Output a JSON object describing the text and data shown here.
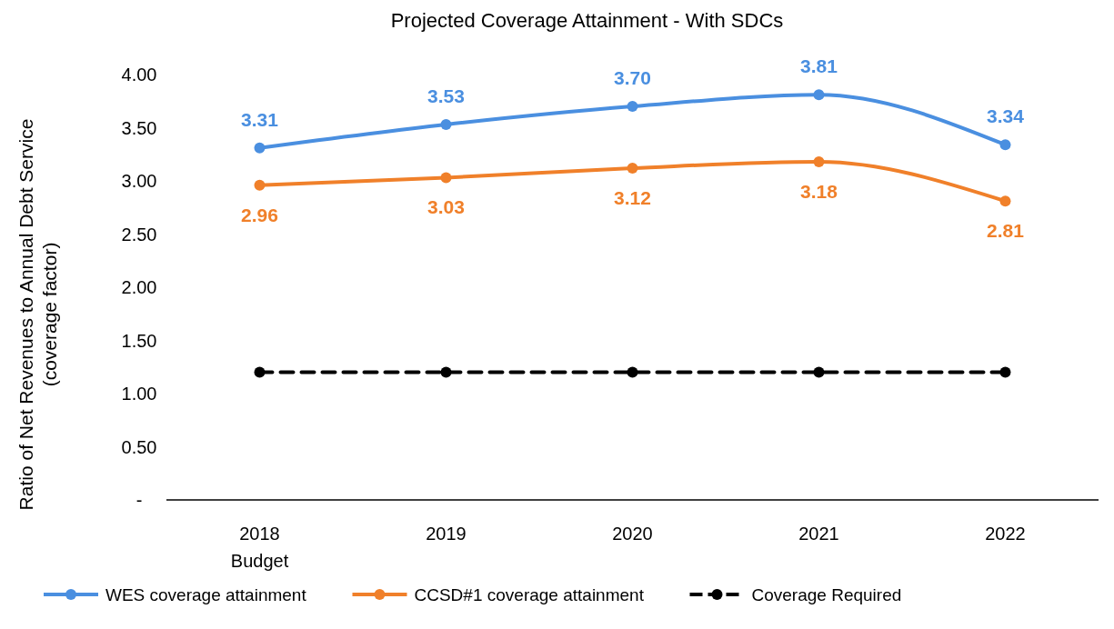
{
  "chart_data": {
    "type": "line",
    "title": "Projected Coverage Attainment - With SDCs",
    "ylabel": "Ratio of Net Revenues to Annual Debt Service\n(coverage factor)",
    "categories": [
      "2018\nBudget",
      "2019",
      "2020",
      "2021",
      "2022"
    ],
    "series": [
      {
        "name": "WES coverage attainment",
        "color": "#4a8fe0",
        "values": [
          3.31,
          3.53,
          3.7,
          3.81,
          3.34
        ],
        "value_labels": [
          "3.31",
          "3.53",
          "3.70",
          "3.81",
          "3.34"
        ]
      },
      {
        "name": "CCSD#1 coverage attainment",
        "color": "#f0802a",
        "values": [
          2.96,
          3.03,
          3.12,
          3.18,
          2.81
        ],
        "value_labels": [
          "2.96",
          "3.03",
          "3.12",
          "3.18",
          "2.81"
        ]
      },
      {
        "name": "Coverage Required",
        "color": "#000000",
        "values": [
          1.2,
          1.2,
          1.2,
          1.2,
          1.2
        ],
        "line_style": "dashed"
      }
    ],
    "ylim": [
      0,
      4
    ],
    "yticks": [
      {
        "value": 0,
        "label": "-"
      },
      {
        "value": 0.5,
        "label": "0.50"
      },
      {
        "value": 1,
        "label": "1.00"
      },
      {
        "value": 1.5,
        "label": "1.50"
      },
      {
        "value": 2,
        "label": "2.00"
      },
      {
        "value": 2.5,
        "label": "2.50"
      },
      {
        "value": 3,
        "label": "3.00"
      },
      {
        "value": 3.5,
        "label": "3.50"
      },
      {
        "value": 4,
        "label": "4.00"
      }
    ],
    "marker": "circle",
    "legend": "bottom",
    "grid": false
  }
}
